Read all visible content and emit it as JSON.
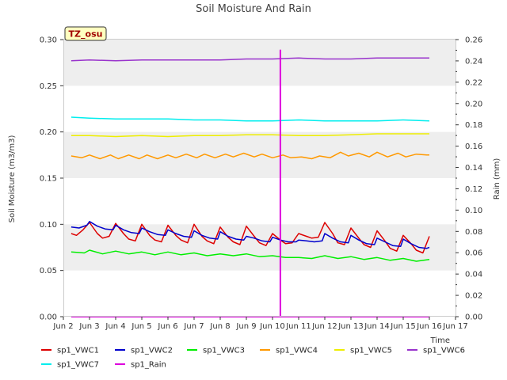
{
  "chart_data": {
    "type": "line",
    "title": "Soil Moisture And Rain",
    "site_label": "TZ_osu",
    "xlabel": "Time",
    "ylabel_left": "Soil Moisture (m3/m3)",
    "ylabel_right": "Rain (mm)",
    "x_ticks": [
      "Jun 2",
      "Jun 3",
      "Jun 4",
      "Jun 5",
      "Jun 6",
      "Jun 7",
      "Jun 8",
      "Jun 9",
      "Jun 10",
      "Jun 11",
      "Jun 12",
      "Jun 13",
      "Jun 14",
      "Jun 15",
      "Jun 16",
      "Jun 17"
    ],
    "xlim_days": [
      2,
      17
    ],
    "ylim_left": [
      0,
      0.3
    ],
    "ylim_right": [
      0,
      0.26
    ],
    "y_ticks_left": [
      "0.00",
      "0.05",
      "0.10",
      "0.15",
      "0.20",
      "0.25",
      "0.30"
    ],
    "y_ticks_right": [
      "0.00",
      "0.02",
      "0.04",
      "0.06",
      "0.08",
      "0.10",
      "0.12",
      "0.14",
      "0.16",
      "0.18",
      "0.20",
      "0.22",
      "0.24",
      "0.26"
    ],
    "grid": "alternating horizontal bands",
    "legend_position": "bottom",
    "series": [
      {
        "name": "sp1_VWC1",
        "color": "#dd0000",
        "axis": "left",
        "x": [
          2.3,
          2.5,
          2.75,
          3.0,
          3.3,
          3.5,
          3.75,
          4.0,
          4.3,
          4.5,
          4.75,
          5.0,
          5.3,
          5.5,
          5.75,
          6.0,
          6.3,
          6.5,
          6.75,
          7.0,
          7.3,
          7.5,
          7.75,
          8.0,
          8.3,
          8.5,
          8.75,
          9.0,
          9.3,
          9.5,
          9.75,
          10.0,
          10.3,
          10.5,
          10.75,
          11.0,
          11.3,
          11.5,
          11.75,
          12.0,
          12.3,
          12.5,
          12.75,
          13.0,
          13.3,
          13.5,
          13.75,
          14.0,
          14.3,
          14.5,
          14.75,
          15.0,
          15.3,
          15.5,
          15.75,
          16.0
        ],
        "y": [
          0.09,
          0.088,
          0.094,
          0.102,
          0.09,
          0.085,
          0.087,
          0.101,
          0.09,
          0.084,
          0.082,
          0.1,
          0.088,
          0.083,
          0.081,
          0.099,
          0.088,
          0.083,
          0.08,
          0.1,
          0.087,
          0.082,
          0.079,
          0.097,
          0.086,
          0.081,
          0.078,
          0.098,
          0.087,
          0.08,
          0.077,
          0.09,
          0.083,
          0.079,
          0.08,
          0.09,
          0.087,
          0.085,
          0.086,
          0.102,
          0.09,
          0.08,
          0.078,
          0.096,
          0.085,
          0.078,
          0.075,
          0.093,
          0.082,
          0.074,
          0.071,
          0.088,
          0.079,
          0.072,
          0.069,
          0.087
        ]
      },
      {
        "name": "sp1_VWC2",
        "color": "#0000cc",
        "axis": "left",
        "x": [
          2.3,
          2.6,
          2.9,
          3.0,
          3.3,
          3.6,
          3.9,
          4.0,
          4.3,
          4.6,
          4.9,
          5.0,
          5.3,
          5.6,
          5.9,
          6.0,
          6.3,
          6.6,
          6.9,
          7.0,
          7.3,
          7.6,
          7.9,
          8.0,
          8.3,
          8.6,
          8.9,
          9.0,
          9.3,
          9.6,
          9.9,
          10.0,
          10.3,
          10.6,
          10.9,
          11.0,
          11.3,
          11.6,
          11.9,
          12.0,
          12.3,
          12.6,
          12.9,
          13.0,
          13.3,
          13.6,
          13.9,
          14.0,
          14.3,
          14.6,
          14.9,
          15.0,
          15.3,
          15.6,
          15.9,
          16.0
        ],
        "y": [
          0.097,
          0.096,
          0.099,
          0.103,
          0.098,
          0.095,
          0.094,
          0.099,
          0.094,
          0.091,
          0.09,
          0.096,
          0.092,
          0.089,
          0.088,
          0.094,
          0.09,
          0.087,
          0.086,
          0.093,
          0.088,
          0.085,
          0.084,
          0.092,
          0.087,
          0.084,
          0.083,
          0.087,
          0.085,
          0.082,
          0.081,
          0.086,
          0.083,
          0.081,
          0.081,
          0.083,
          0.082,
          0.081,
          0.082,
          0.09,
          0.085,
          0.081,
          0.08,
          0.088,
          0.083,
          0.079,
          0.078,
          0.085,
          0.081,
          0.077,
          0.076,
          0.084,
          0.079,
          0.075,
          0.074,
          0.075
        ]
      },
      {
        "name": "sp1_VWC3",
        "color": "#00ee00",
        "axis": "left",
        "x": [
          2.3,
          2.8,
          3.0,
          3.5,
          4.0,
          4.5,
          5.0,
          5.5,
          6.0,
          6.5,
          7.0,
          7.5,
          8.0,
          8.5,
          9.0,
          9.5,
          10.0,
          10.5,
          11.0,
          11.5,
          12.0,
          12.5,
          13.0,
          13.5,
          14.0,
          14.5,
          15.0,
          15.5,
          16.0
        ],
        "y": [
          0.07,
          0.069,
          0.072,
          0.068,
          0.071,
          0.068,
          0.07,
          0.067,
          0.07,
          0.067,
          0.069,
          0.066,
          0.068,
          0.066,
          0.068,
          0.065,
          0.066,
          0.064,
          0.064,
          0.063,
          0.066,
          0.063,
          0.065,
          0.062,
          0.064,
          0.061,
          0.063,
          0.06,
          0.062
        ]
      },
      {
        "name": "sp1_VWC4",
        "color": "#ff9900",
        "axis": "left",
        "x": [
          2.3,
          2.7,
          3.0,
          3.4,
          3.8,
          4.1,
          4.5,
          4.9,
          5.2,
          5.6,
          6.0,
          6.3,
          6.7,
          7.1,
          7.4,
          7.8,
          8.2,
          8.5,
          8.9,
          9.3,
          9.6,
          10.0,
          10.4,
          10.7,
          11.1,
          11.5,
          11.8,
          12.2,
          12.6,
          12.9,
          13.3,
          13.7,
          14.0,
          14.4,
          14.8,
          15.1,
          15.5,
          15.9,
          16.0
        ],
        "y": [
          0.174,
          0.172,
          0.175,
          0.171,
          0.175,
          0.171,
          0.175,
          0.171,
          0.175,
          0.171,
          0.175,
          0.172,
          0.176,
          0.172,
          0.176,
          0.172,
          0.176,
          0.173,
          0.177,
          0.173,
          0.176,
          0.172,
          0.175,
          0.172,
          0.173,
          0.171,
          0.174,
          0.172,
          0.178,
          0.174,
          0.177,
          0.173,
          0.178,
          0.173,
          0.177,
          0.173,
          0.176,
          0.175,
          0.175
        ]
      },
      {
        "name": "sp1_VWC5",
        "color": "#eeee00",
        "axis": "left",
        "x": [
          2.3,
          3.0,
          4.0,
          5.0,
          6.0,
          7.0,
          8.0,
          9.0,
          10.0,
          11.0,
          12.0,
          13.0,
          14.0,
          15.0,
          16.0
        ],
        "y": [
          0.196,
          0.196,
          0.195,
          0.196,
          0.195,
          0.196,
          0.196,
          0.197,
          0.197,
          0.196,
          0.196,
          0.197,
          0.198,
          0.198,
          0.198
        ]
      },
      {
        "name": "sp1_VWC6",
        "color": "#9933cc",
        "axis": "left",
        "x": [
          2.3,
          3.0,
          4.0,
          5.0,
          6.0,
          7.0,
          8.0,
          9.0,
          10.0,
          11.0,
          12.0,
          13.0,
          14.0,
          15.0,
          16.0
        ],
        "y": [
          0.277,
          0.278,
          0.277,
          0.278,
          0.278,
          0.278,
          0.278,
          0.279,
          0.279,
          0.28,
          0.279,
          0.279,
          0.28,
          0.28,
          0.28
        ]
      },
      {
        "name": "sp1_VWC7",
        "color": "#00eeee",
        "axis": "left",
        "x": [
          2.3,
          3.0,
          4.0,
          5.0,
          6.0,
          7.0,
          8.0,
          9.0,
          10.0,
          11.0,
          12.0,
          13.0,
          14.0,
          15.0,
          16.0
        ],
        "y": [
          0.216,
          0.215,
          0.214,
          0.214,
          0.214,
          0.213,
          0.213,
          0.212,
          0.212,
          0.213,
          0.212,
          0.212,
          0.212,
          0.213,
          0.212
        ]
      },
      {
        "name": "sp1_Rain",
        "color": "#dd00dd",
        "axis": "right",
        "x": [
          2.3,
          10.3,
          10.3,
          10.3,
          10.3,
          16.0
        ],
        "y": [
          0,
          0,
          0.25,
          0.25,
          0,
          0
        ]
      }
    ]
  }
}
